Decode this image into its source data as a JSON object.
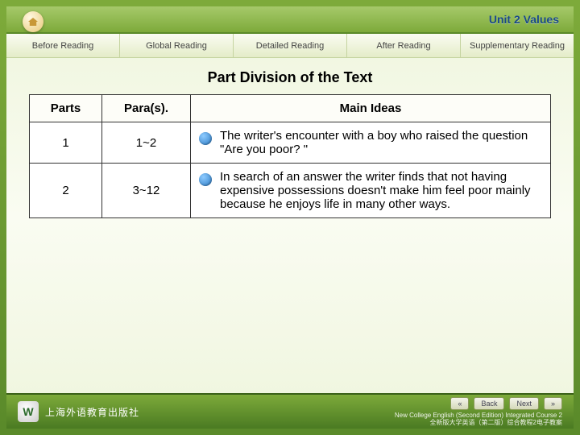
{
  "header": {
    "unit_title": "Unit 2  Values"
  },
  "tabs": [
    {
      "label": "Before Reading"
    },
    {
      "label": "Global Reading"
    },
    {
      "label": "Detailed Reading"
    },
    {
      "label": "After Reading"
    },
    {
      "label": "Supplementary Reading"
    }
  ],
  "section_title": "Part Division of the Text",
  "table": {
    "headers": {
      "parts": "Parts",
      "paras": "Para(s).",
      "ideas": "Main Ideas"
    },
    "rows": [
      {
        "part": "1",
        "paras": "1~2",
        "idea": "The writer's encounter with a boy who raised the question \"Are you poor? \""
      },
      {
        "part": "2",
        "paras": "3~12",
        "idea": "In search of an answer the writer finds that not having expensive possessions doesn't make him feel poor mainly because he enjoys life in many other ways."
      }
    ]
  },
  "footer": {
    "publisher_logo": "W",
    "publisher_name": "上海外语教育出版社",
    "course_line1": "New College English (Second Edition) Integrated Course 2",
    "course_line2": "全新版大学英语（第二版）综合教程2电子教案",
    "nav": {
      "rewind": "«",
      "back": "Back",
      "next": "Next",
      "forward": "»"
    }
  },
  "colors": {
    "header_green_top": "#a6c96a",
    "header_green_bottom": "#7daa3a",
    "unit_title_color": "#1a4a8a",
    "bullet_blue": "#2a7ac4",
    "border_dark": "#333333"
  }
}
